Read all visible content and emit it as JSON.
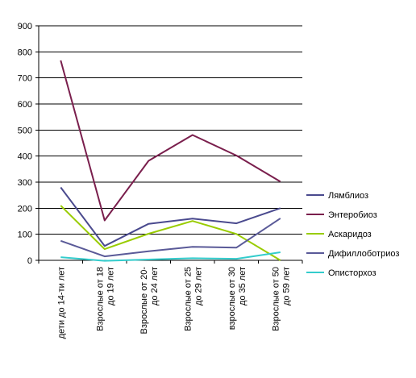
{
  "chart_data": {
    "type": "line",
    "title": "",
    "xlabel": "",
    "ylabel": "",
    "ylim": [
      0,
      900
    ],
    "yticks": [
      0,
      100,
      200,
      300,
      400,
      500,
      600,
      700,
      800,
      900
    ],
    "grid": "horizontal",
    "legend_position": "right",
    "categories": [
      [
        "дети до 14-ти лет"
      ],
      [
        "Взрослые от 18",
        "до 19 лет"
      ],
      [
        "Взрослые от 20-",
        "до 24 лет"
      ],
      [
        "Взрослые от 25",
        "до 29 лет"
      ],
      [
        "взрослые от 30",
        "до 35 лет"
      ],
      [
        "Взрослые от 50",
        "до 59 лет"
      ]
    ],
    "series": [
      {
        "name": "Лямблиоз",
        "color": "#4a4a8e",
        "values": [
          280,
          55,
          140,
          160,
          142,
          200
        ]
      },
      {
        "name": "Энтеробиоз",
        "color": "#7a1f4d",
        "values": [
          767,
          153,
          382,
          481,
          402,
          302
        ]
      },
      {
        "name": "Аскаридоз",
        "color": "#99cc00",
        "values": [
          210,
          43,
          102,
          151,
          101,
          0
        ]
      },
      {
        "name": "Дифиллоботриоз",
        "color": "#5a5a98",
        "values": [
          75,
          15,
          35,
          52,
          49,
          161
        ]
      },
      {
        "name": "Описторхоз",
        "color": "#33cccc",
        "values": [
          12,
          -2,
          3,
          8,
          6,
          31
        ]
      }
    ]
  }
}
